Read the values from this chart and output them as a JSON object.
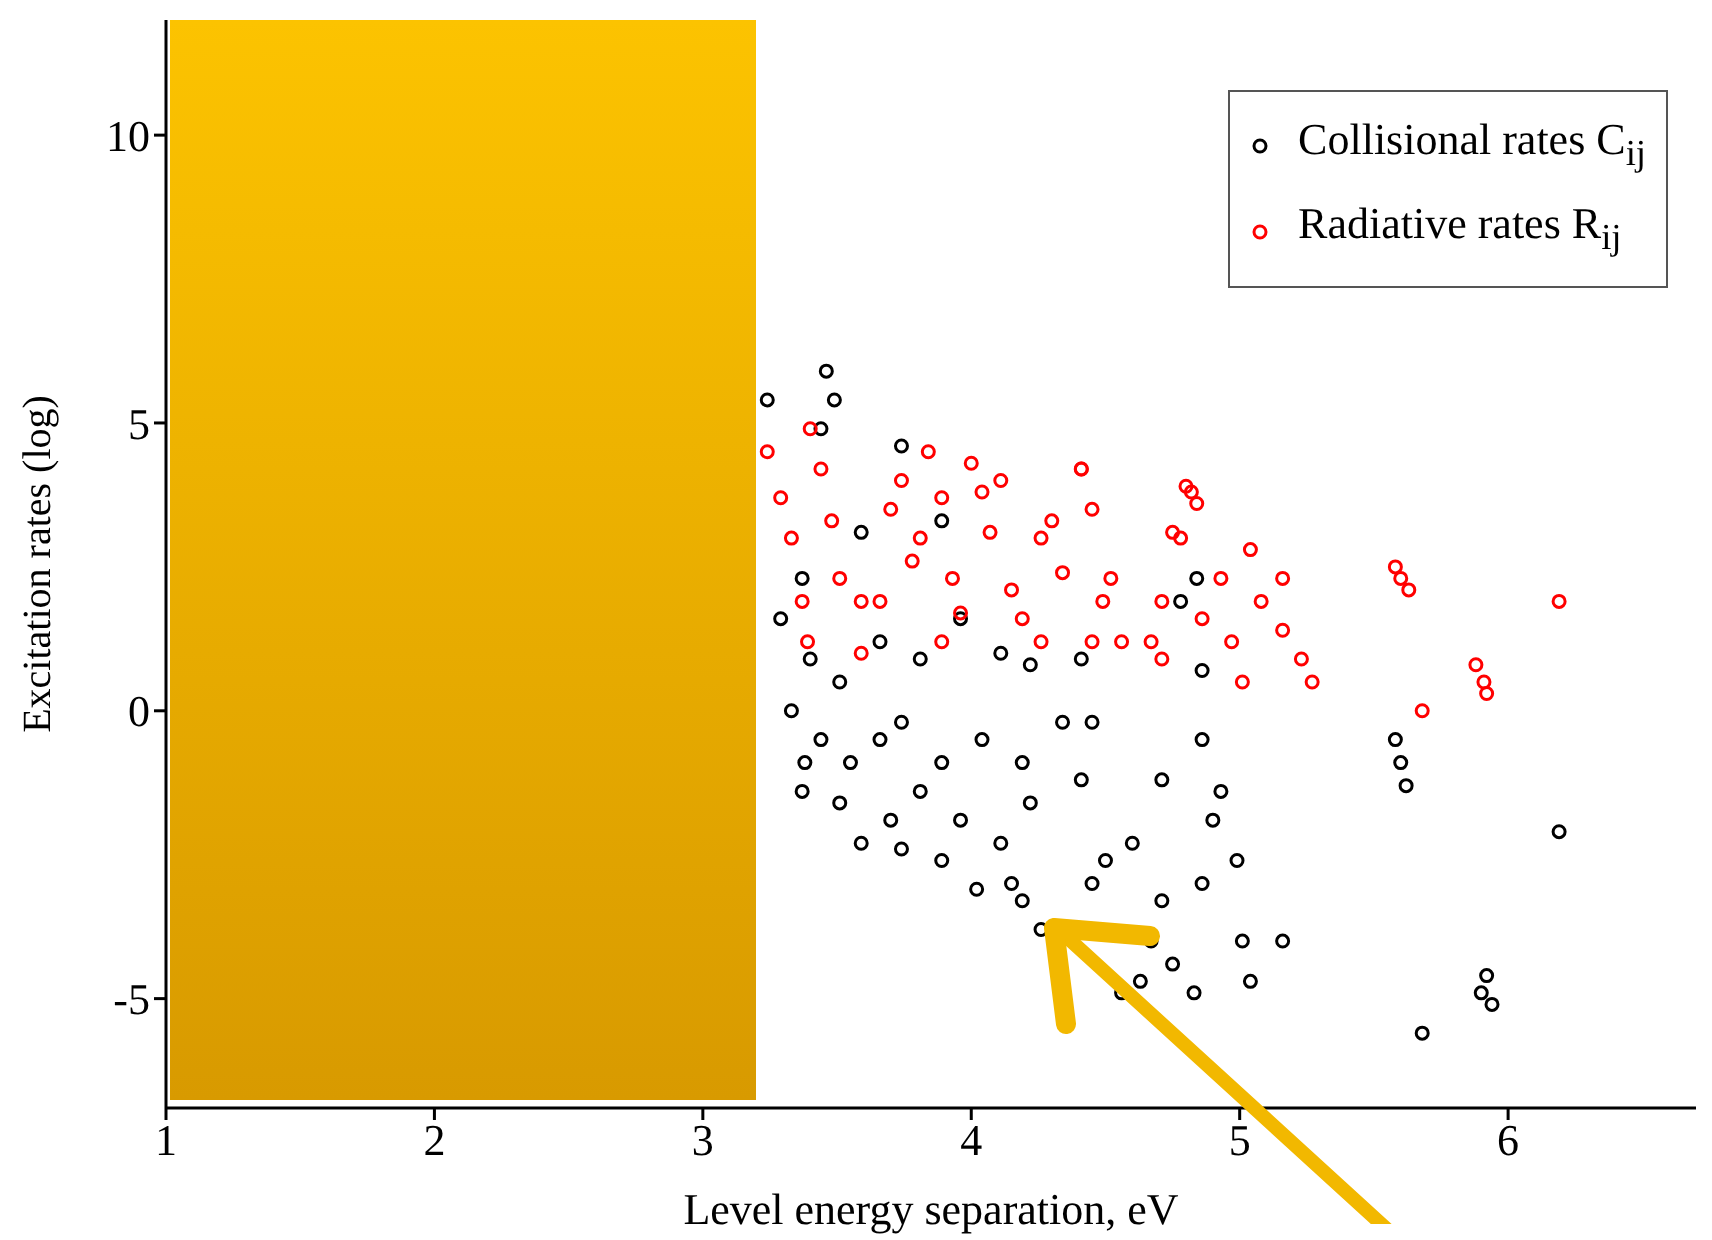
{
  "chart_data": {
    "type": "scatter",
    "xlabel": "Level energy separation, eV",
    "ylabel": "Excitation rates (log)",
    "xlim": [
      1,
      6.7
    ],
    "xticks": [
      1,
      2,
      3,
      4,
      5,
      6
    ],
    "ylim": [
      -6.9,
      12
    ],
    "yticks": [
      -5,
      0,
      5,
      10
    ],
    "marker": "circle",
    "legend": "top right",
    "grid": false,
    "series": [
      {
        "name": "Collisional rates C$_{ij}$",
        "color": "#000000",
        "x": [
          3.46,
          3.49,
          3.24,
          3.44,
          3.74,
          3.89,
          3.59,
          3.37,
          3.29,
          3.4,
          3.51,
          3.66,
          3.81,
          3.96,
          4.11,
          4.22,
          4.41,
          3.33,
          3.44,
          3.38,
          3.55,
          3.66,
          3.74,
          3.89,
          4.04,
          4.19,
          4.34,
          4.45,
          3.37,
          3.51,
          3.7,
          3.81,
          3.96,
          4.11,
          4.22,
          4.41,
          4.15,
          4.02,
          3.89,
          3.74,
          3.59,
          4.19,
          4.26,
          4.45,
          4.5,
          4.6,
          4.71,
          4.86,
          4.93,
          4.9,
          4.99,
          5.01,
          4.71,
          4.75,
          4.86,
          4.67,
          5.04,
          5.16,
          4.63,
          4.83,
          4.56,
          4.84,
          4.78,
          4.86,
          5.68,
          5.58,
          5.6,
          5.62,
          6.19,
          5.92,
          5.94,
          5.9
        ],
        "values": [
          5.9,
          5.4,
          5.4,
          4.9,
          4.6,
          3.3,
          3.1,
          2.3,
          1.6,
          0.9,
          0.5,
          1.2,
          0.9,
          1.6,
          1.0,
          0.8,
          0.9,
          0.0,
          -0.5,
          -0.9,
          -0.9,
          -0.5,
          -0.2,
          -0.9,
          -0.5,
          -0.9,
          -0.2,
          -0.2,
          -1.4,
          -1.6,
          -1.9,
          -1.4,
          -1.9,
          -2.3,
          -1.6,
          -1.2,
          -3.0,
          -3.1,
          -2.6,
          -2.4,
          -2.3,
          -3.3,
          -3.8,
          -3.0,
          -2.6,
          -2.3,
          -1.2,
          -0.5,
          -1.4,
          -1.9,
          -2.6,
          -4.0,
          -3.3,
          -4.4,
          -3.0,
          -4.0,
          -4.7,
          -4.0,
          -4.7,
          -4.9,
          -4.9,
          2.3,
          1.9,
          0.7,
          -5.6,
          -0.5,
          -0.9,
          -1.3,
          -2.1,
          -4.6,
          -5.1,
          -4.9
        ]
      },
      {
        "name": "Radiative rates R$_{ij}$",
        "color": "#ff0000",
        "x": [
          3.24,
          3.29,
          3.33,
          3.4,
          3.44,
          3.48,
          3.51,
          3.59,
          3.37,
          3.66,
          3.7,
          3.74,
          3.78,
          3.81,
          3.89,
          3.93,
          3.96,
          4.04,
          4.07,
          4.11,
          4.15,
          4.19,
          4.26,
          4.3,
          4.34,
          4.41,
          4.45,
          4.49,
          4.52,
          4.56,
          4.45,
          4.26,
          4.71,
          4.75,
          4.78,
          4.82,
          4.86,
          4.93,
          4.97,
          5.01,
          5.08,
          5.16,
          5.23,
          5.27,
          4.71,
          4.67,
          3.89,
          3.59,
          3.39,
          3.84,
          4.0,
          4.41,
          4.84,
          4.8,
          5.58,
          5.6,
          5.63,
          5.68,
          5.88,
          5.91,
          5.92,
          6.19,
          5.16,
          5.04
        ],
        "values": [
          4.5,
          3.7,
          3.0,
          4.9,
          4.2,
          3.3,
          2.3,
          1.9,
          1.9,
          1.9,
          3.5,
          4.0,
          2.6,
          3.0,
          3.7,
          2.3,
          1.7,
          3.8,
          3.1,
          4.0,
          2.1,
          1.6,
          3.0,
          3.3,
          2.4,
          4.2,
          3.5,
          1.9,
          2.3,
          1.2,
          1.2,
          1.2,
          1.9,
          3.1,
          3.0,
          3.8,
          1.6,
          2.3,
          1.2,
          0.5,
          1.9,
          1.4,
          0.9,
          0.5,
          0.9,
          1.2,
          1.2,
          1.0,
          1.2,
          4.5,
          4.3,
          4.2,
          3.6,
          3.9,
          2.5,
          2.3,
          2.1,
          0.0,
          0.8,
          0.5,
          0.3,
          1.9,
          2.3,
          2.8
        ]
      }
    ]
  }
}
